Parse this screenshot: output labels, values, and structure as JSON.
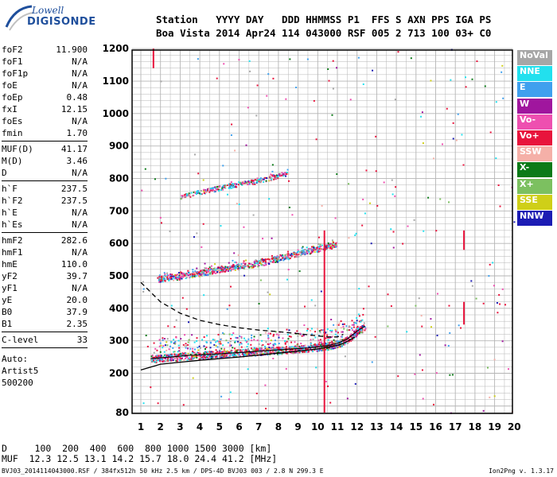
{
  "logo": {
    "line1": "Lowell",
    "line2": "DIGISONDE"
  },
  "header": {
    "line1": "Station   YYYY DAY   DDD HHMMSS P1  FFS S AXN PPS IGA PS",
    "line2": "Boa Vista 2014 Apr24 114 043000 RSF 005 2 713 100 03+ C0"
  },
  "params": {
    "group1": [
      {
        "label": "foF2",
        "value": "11.900"
      },
      {
        "label": "foF1",
        "value": "N/A"
      },
      {
        "label": "foF1p",
        "value": "N/A"
      },
      {
        "label": "foE",
        "value": "N/A"
      },
      {
        "label": "foEp",
        "value": "0.48"
      },
      {
        "label": "fxI",
        "value": "12.15"
      },
      {
        "label": "foEs",
        "value": "N/A"
      },
      {
        "label": "fmin",
        "value": "1.70"
      }
    ],
    "group2": [
      {
        "label": "MUF(D)",
        "value": "41.17"
      },
      {
        "label": "M(D)",
        "value": "3.46"
      },
      {
        "label": "D",
        "value": "N/A"
      }
    ],
    "group3": [
      {
        "label": "h`F",
        "value": "237.5"
      },
      {
        "label": "h`F2",
        "value": "237.5"
      },
      {
        "label": "h`E",
        "value": "N/A"
      },
      {
        "label": "h`Es",
        "value": "N/A"
      }
    ],
    "group4": [
      {
        "label": "hmF2",
        "value": "282.6"
      },
      {
        "label": "hmF1",
        "value": "N/A"
      },
      {
        "label": "hmE",
        "value": "110.0"
      },
      {
        "label": "yF2",
        "value": "39.7"
      },
      {
        "label": "yF1",
        "value": "N/A"
      },
      {
        "label": "yE",
        "value": "20.0"
      },
      {
        "label": "B0",
        "value": "37.9"
      },
      {
        "label": "B1",
        "value": "2.35"
      }
    ],
    "group5": [
      {
        "label": "C-level",
        "value": "33"
      }
    ],
    "auto": [
      "Auto:",
      "Artist5",
      "500200"
    ]
  },
  "legend": [
    {
      "label": "NoVal",
      "color": "#a6a6a6"
    },
    {
      "label": "NNE",
      "color": "#22e0ee"
    },
    {
      "label": "E",
      "color": "#3fa0ee"
    },
    {
      "label": "W",
      "color": "#a0169e"
    },
    {
      "label": "Vo-",
      "color": "#ee4fb0"
    },
    {
      "label": "Vo+",
      "color": "#e8143c"
    },
    {
      "label": "SSW",
      "color": "#f5b0a8"
    },
    {
      "label": "X-",
      "color": "#0c7a18"
    },
    {
      "label": "X+",
      "color": "#7cc060"
    },
    {
      "label": "SSE",
      "color": "#cfcf18"
    },
    {
      "label": "NNW",
      "color": "#1c1cb4"
    }
  ],
  "footer": {
    "line1": "D     100  200  400  600  800 1000 1500 3000 [km]",
    "line2": "MUF  12.3 12.5 13.1 14.2 15.7 18.0 24.4 41.2 [MHz]",
    "file": "BVJ03_2014114043000.RSF / 384fx512h 50 kHz 2.5 km / DPS-4D BVJ03 003 / 2.8 N 299.3 E",
    "version": "Ion2Png v. 1.3.17"
  },
  "chart_data": {
    "type": "scatter",
    "xlabel": "",
    "ylabel": "",
    "xlim": [
      1,
      20
    ],
    "ylim": [
      80,
      1200
    ],
    "x_ticks": [
      "1",
      "2",
      "3",
      "4",
      "5",
      "6",
      "7",
      "8",
      "9",
      "10",
      "11",
      "12",
      "13",
      "14",
      "15",
      "16",
      "17",
      "18",
      "19",
      "20"
    ],
    "y_ticks": [
      "80",
      "200",
      "300",
      "400",
      "500",
      "600",
      "700",
      "800",
      "900",
      "1000",
      "1100",
      "1200"
    ],
    "grid": true,
    "traces": [
      {
        "name": "F2 O-trace",
        "x": [
          1.5,
          2.5,
          3.5,
          4.5,
          5.5,
          6.5,
          7.5,
          8.5,
          9.5,
          10.5,
          11.0,
          11.5,
          12.0,
          12.4
        ],
        "y": [
          245,
          250,
          255,
          258,
          262,
          266,
          270,
          274,
          278,
          285,
          292,
          305,
          330,
          345
        ]
      },
      {
        "name": "2F echo",
        "x": [
          1.8,
          3,
          4,
          5,
          6,
          7,
          8,
          9,
          10,
          11
        ],
        "y": [
          490,
          500,
          510,
          520,
          530,
          540,
          555,
          570,
          585,
          600
        ]
      },
      {
        "name": "3F echo",
        "x": [
          3.0,
          4,
          5,
          6,
          7,
          8,
          8.5
        ],
        "y": [
          745,
          760,
          772,
          785,
          795,
          810,
          820
        ]
      }
    ],
    "profile_solid": {
      "x": [
        1,
        2,
        3,
        4,
        5,
        6,
        7,
        8,
        9,
        10,
        10.5,
        11,
        11.3,
        11.5,
        11.7,
        11.9
      ],
      "y": [
        210,
        228,
        234,
        240,
        245,
        250,
        256,
        262,
        268,
        275,
        280,
        286,
        292,
        298,
        305,
        312
      ]
    },
    "profile_dashed": {
      "x": [
        1,
        2,
        3,
        4,
        5,
        6,
        7,
        8,
        9,
        10,
        10.5,
        11,
        11.3
      ],
      "y": [
        480,
        420,
        385,
        363,
        350,
        340,
        333,
        328,
        322,
        315,
        312,
        312,
        320
      ]
    }
  }
}
